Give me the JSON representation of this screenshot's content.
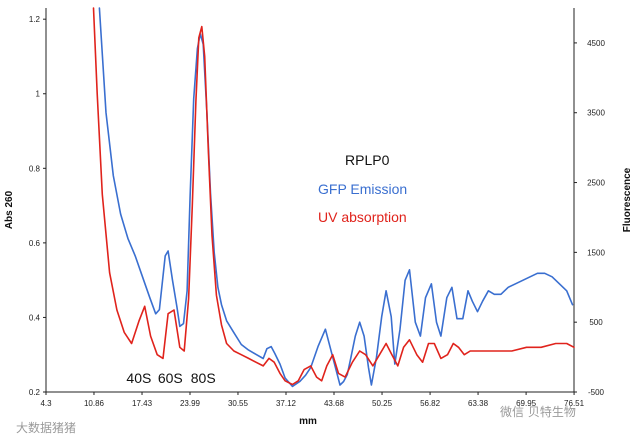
{
  "chart_data": {
    "type": "line",
    "title": "RPLP0",
    "xlabel": "mm",
    "ylabel": "Abs 260",
    "y2label": "Fluorescence",
    "xlim": [
      4.3,
      76.5
    ],
    "ylim": [
      0.2,
      1.23
    ],
    "y2lim": [
      -500,
      5000
    ],
    "grid": false,
    "legend_position": "center",
    "x_ticks": [
      "4.3",
      "10.86",
      "17.43",
      "23.99",
      "30.55",
      "37.12",
      "43.68",
      "50.25",
      "56.82",
      "63.38",
      "69.95",
      "76.51"
    ],
    "x_tick_values": [
      4.3,
      10.86,
      17.43,
      23.99,
      30.55,
      37.12,
      43.68,
      50.25,
      56.82,
      63.38,
      69.95,
      76.51
    ],
    "y_ticks": [
      "0.2",
      "0.4",
      "0.6",
      "0.8",
      "1",
      "1.2"
    ],
    "y_tick_values": [
      0.2,
      0.4,
      0.6,
      0.8,
      1.0,
      1.2
    ],
    "y2_ticks": [
      "-500",
      "500",
      "1500",
      "2500",
      "3500",
      "4500"
    ],
    "y2_tick_values": [
      -500,
      500,
      1500,
      2500,
      3500,
      4500
    ],
    "annotations": [
      {
        "text": "40S",
        "x": 17.0
      },
      {
        "text": "60S",
        "x": 21.3
      },
      {
        "text": "80S",
        "x": 25.8
      }
    ],
    "series": [
      {
        "name": "GFP Emission",
        "axis": "right",
        "color": "#3a6fd0",
        "x": [
          11.6,
          12.5,
          13.5,
          14.5,
          15.5,
          16.5,
          17.5,
          18.5,
          19.3,
          19.8,
          20.6,
          21.0,
          21.6,
          22.2,
          22.6,
          23.1,
          23.6,
          24.0,
          24.5,
          25.0,
          25.4,
          25.8,
          26.3,
          26.8,
          27.3,
          27.8,
          28.3,
          29.0,
          30.0,
          31.0,
          32.0,
          33.0,
          34.0,
          34.5,
          35.1,
          35.6,
          36.3,
          37.0,
          38.0,
          39.0,
          39.8,
          40.5,
          41.5,
          42.5,
          43.5,
          44.5,
          45.0,
          45.5,
          46.0,
          46.6,
          47.2,
          47.8,
          48.4,
          48.8,
          49.5,
          50.2,
          50.8,
          51.5,
          52.0,
          52.7,
          53.4,
          54.0,
          54.8,
          55.5,
          56.2,
          57.0,
          57.7,
          58.3,
          59.1,
          59.8,
          60.5,
          61.3,
          62.0,
          62.6,
          63.3,
          64.0,
          64.8,
          65.6,
          66.5,
          67.5,
          68.5,
          69.5,
          70.5,
          71.5,
          72.5,
          73.5,
          74.5,
          75.5,
          76.3
        ],
        "values": [
          5000,
          3500,
          2600,
          2050,
          1700,
          1450,
          1150,
          850,
          620,
          680,
          1450,
          1520,
          1100,
          720,
          440,
          480,
          950,
          2300,
          3700,
          4420,
          4630,
          4480,
          3500,
          2350,
          1500,
          1000,
          750,
          520,
          350,
          180,
          100,
          40,
          -20,
          120,
          150,
          50,
          -100,
          -300,
          -420,
          -350,
          -260,
          -150,
          150,
          400,
          0,
          -400,
          -350,
          -250,
          0,
          300,
          500,
          300,
          -150,
          -400,
          0,
          580,
          950,
          580,
          -100,
          400,
          1100,
          1250,
          500,
          300,
          850,
          1050,
          500,
          300,
          850,
          1000,
          550,
          550,
          950,
          800,
          650,
          800,
          950,
          900,
          900,
          1000,
          1050,
          1100,
          1150,
          1200,
          1200,
          1150,
          1050,
          950,
          750
        ]
      },
      {
        "name": "UV absorption",
        "axis": "left",
        "color": "#e0231c",
        "x": [
          10.8,
          11.3,
          12.0,
          13.0,
          14.0,
          15.0,
          16.0,
          17.0,
          17.8,
          18.6,
          19.5,
          20.3,
          21.0,
          21.8,
          22.6,
          23.2,
          23.8,
          24.3,
          24.8,
          25.2,
          25.6,
          26.0,
          26.5,
          27.0,
          27.6,
          28.3,
          29.0,
          30.0,
          31.0,
          32.0,
          33.0,
          34.0,
          34.8,
          35.5,
          36.3,
          37.0,
          38.0,
          38.8,
          39.6,
          40.5,
          41.3,
          42.0,
          42.7,
          43.5,
          44.3,
          45.2,
          46.2,
          47.2,
          48.0,
          49.0,
          49.9,
          50.8,
          51.6,
          52.4,
          53.2,
          54.0,
          55.0,
          55.8,
          56.6,
          57.4,
          58.3,
          59.2,
          60.0,
          60.7,
          61.5,
          62.3,
          63.3,
          64.5,
          66.0,
          68.0,
          70.0,
          72.0,
          74.0,
          75.5,
          76.5
        ],
        "values": [
          1.23,
          1.0,
          0.73,
          0.52,
          0.42,
          0.36,
          0.33,
          0.39,
          0.43,
          0.35,
          0.3,
          0.29,
          0.41,
          0.42,
          0.32,
          0.31,
          0.45,
          0.7,
          0.98,
          1.15,
          1.18,
          1.1,
          0.85,
          0.62,
          0.46,
          0.38,
          0.33,
          0.31,
          0.3,
          0.29,
          0.28,
          0.27,
          0.29,
          0.28,
          0.25,
          0.23,
          0.22,
          0.23,
          0.26,
          0.27,
          0.24,
          0.23,
          0.27,
          0.3,
          0.25,
          0.24,
          0.28,
          0.31,
          0.3,
          0.27,
          0.3,
          0.33,
          0.3,
          0.27,
          0.32,
          0.34,
          0.3,
          0.28,
          0.33,
          0.33,
          0.29,
          0.3,
          0.33,
          0.32,
          0.3,
          0.31,
          0.31,
          0.31,
          0.31,
          0.31,
          0.32,
          0.32,
          0.33,
          0.33,
          0.32
        ]
      }
    ]
  },
  "watermarks": {
    "left": "大数据猪猪",
    "right": "微信 贝特生物"
  }
}
